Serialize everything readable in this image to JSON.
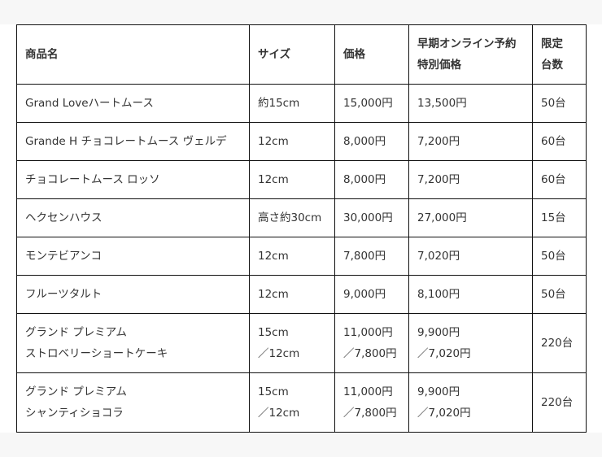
{
  "table": {
    "headers": [
      [
        "商品名"
      ],
      [
        "サイズ"
      ],
      [
        "価格"
      ],
      [
        "早期オンライン予約",
        "特別価格"
      ],
      [
        "限定",
        "台数"
      ]
    ],
    "rows": [
      [
        [
          "Grand Loveハートムース"
        ],
        [
          "約15cm"
        ],
        [
          "15,000円"
        ],
        [
          "13,500円"
        ],
        [
          "50台"
        ]
      ],
      [
        [
          "Grande H チョコレートムース ヴェルデ"
        ],
        [
          "12cm"
        ],
        [
          "8,000円"
        ],
        [
          "7,200円"
        ],
        [
          "60台"
        ]
      ],
      [
        [
          "チョコレートムース ロッソ"
        ],
        [
          "12cm"
        ],
        [
          "8,000円"
        ],
        [
          "7,200円"
        ],
        [
          "60台"
        ]
      ],
      [
        [
          "ヘクセンハウス"
        ],
        [
          "高さ約30cm"
        ],
        [
          "30,000円"
        ],
        [
          "27,000円"
        ],
        [
          "15台"
        ]
      ],
      [
        [
          "モンテビアンコ"
        ],
        [
          "12cm"
        ],
        [
          "7,800円"
        ],
        [
          "7,020円"
        ],
        [
          "50台"
        ]
      ],
      [
        [
          "フルーツタルト"
        ],
        [
          "12cm"
        ],
        [
          "9,000円"
        ],
        [
          "8,100円"
        ],
        [
          "50台"
        ]
      ],
      [
        [
          "グランド プレミアム",
          "ストロベリーショートケーキ"
        ],
        [
          "15cm",
          "／12cm"
        ],
        [
          "11,000円",
          "／7,800円"
        ],
        [
          "9,900円",
          "／7,020円"
        ],
        [
          "220台"
        ]
      ],
      [
        [
          "グランド プレミアム",
          "シャンティショコラ"
        ],
        [
          "15cm",
          "／12cm"
        ],
        [
          "11,000円",
          "／7,800円"
        ],
        [
          "9,900円",
          "／7,020円"
        ],
        [
          "220台"
        ]
      ]
    ]
  }
}
